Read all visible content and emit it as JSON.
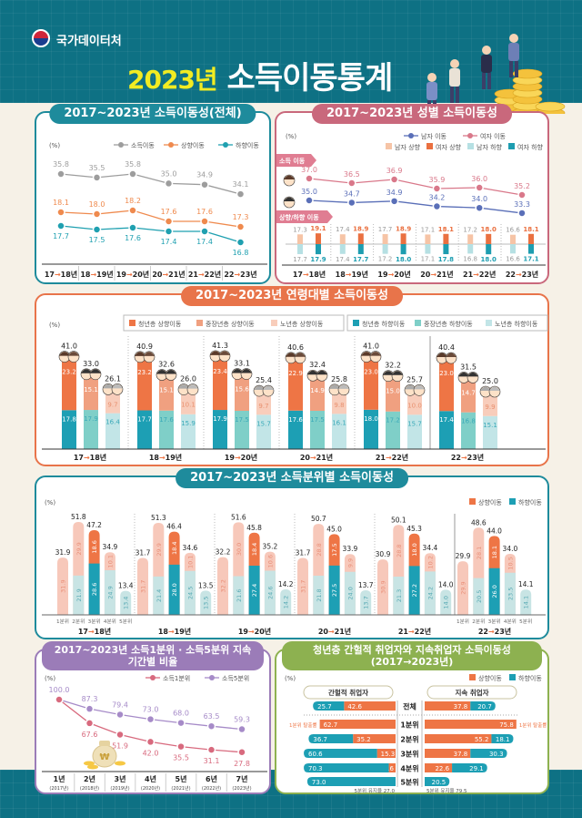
{
  "header": {
    "org": "국가데이터처",
    "title_year": "2023년",
    "title_main": "소득이동통계",
    "logo_icon": "taegeuk-emblem-icon"
  },
  "colors": {
    "teal": "#1e8b9c",
    "pink": "#c9687c",
    "orange": "#e8744a",
    "purple": "#9b7cb8",
    "green": "#8db150",
    "header": "#0e7184"
  },
  "chart_data": [
    {
      "id": "overall",
      "type": "line",
      "title": "2017~2023년 소득이동성(전체)",
      "unit": "(%)",
      "categories": [
        "17→18년",
        "18→19년",
        "19→20년",
        "20→21년",
        "21→22년",
        "22→23년"
      ],
      "series": [
        {
          "name": "소득이동",
          "color": "#9d9d9d",
          "values": [
            35.8,
            35.5,
            35.8,
            35.0,
            34.9,
            34.1
          ]
        },
        {
          "name": "상향이동",
          "color": "#ef8a4e",
          "values": [
            18.1,
            18.0,
            18.2,
            17.6,
            17.6,
            17.3
          ]
        },
        {
          "name": "하향이동",
          "color": "#1fa0b0",
          "values": [
            17.7,
            17.5,
            17.6,
            17.4,
            17.4,
            16.8
          ]
        }
      ]
    },
    {
      "id": "gender",
      "type": "line",
      "title": "2017~2023년 성별  소득이동성",
      "unit": "(%)",
      "section_labels": [
        "소득 이동",
        "상향/하향 이동"
      ],
      "categories": [
        "17→18년",
        "18→19년",
        "19→20년",
        "20→21년",
        "21→22년",
        "22→23년"
      ],
      "series": [
        {
          "name": "남자 이동",
          "color": "#5a6fb8",
          "values": [
            35.0,
            34.7,
            34.9,
            34.2,
            34.0,
            33.3
          ]
        },
        {
          "name": "여자 이동",
          "color": "#d9788a",
          "values": [
            37.0,
            36.5,
            36.9,
            35.9,
            36.0,
            35.2
          ]
        },
        {
          "name": "남자 상향",
          "color": "#f6c4a6",
          "values": [
            17.3,
            17.4,
            17.7,
            17.1,
            17.2,
            16.6
          ]
        },
        {
          "name": "여자 상향",
          "color": "#ea7040",
          "values": [
            19.1,
            18.9,
            18.9,
            18.1,
            18.0,
            18.1
          ]
        },
        {
          "name": "남자 하향",
          "color": "#b6e0e3",
          "values": [
            17.7,
            17.4,
            17.2,
            17.1,
            16.8,
            16.6
          ]
        },
        {
          "name": "여자 하향",
          "color": "#1d9db0",
          "values": [
            17.9,
            17.7,
            18.0,
            17.8,
            18.0,
            17.1
          ]
        }
      ]
    },
    {
      "id": "age",
      "type": "bar",
      "stacked": true,
      "title": "2017~2023년 연령대별 소득이동성",
      "unit": "(%)",
      "categories": [
        "17→18년",
        "18→19년",
        "19→20년",
        "20→21년",
        "21→22년",
        "22→23년"
      ],
      "totals": {
        "청년층": [
          41.0,
          40.9,
          41.3,
          40.6,
          41.0,
          40.4
        ],
        "중장년층": [
          33.0,
          32.6,
          33.1,
          32.4,
          32.2,
          31.5
        ],
        "노년층": [
          26.1,
          26.0,
          25.4,
          25.8,
          25.7,
          25.0
        ]
      },
      "series": [
        {
          "name": "청년층 상향이동",
          "color": "#ee7545",
          "values": [
            23.2,
            23.2,
            23.4,
            22.9,
            23.0,
            23.0
          ]
        },
        {
          "name": "중장년층 상향이동",
          "color": "#f0a080",
          "values": [
            15.1,
            15.1,
            15.6,
            14.9,
            15.0,
            14.7
          ]
        },
        {
          "name": "노년층 상향이동",
          "color": "#f8cdbb",
          "values": [
            9.7,
            10.1,
            9.7,
            9.8,
            10.0,
            9.9
          ]
        },
        {
          "name": "청년층 하향이동",
          "color": "#1d9fb4",
          "values": [
            17.8,
            17.7,
            17.9,
            17.6,
            18.0,
            17.4
          ]
        },
        {
          "name": "중장년층 하향이동",
          "color": "#7fcfc8",
          "values": [
            17.9,
            17.6,
            17.5,
            17.5,
            17.2,
            16.8
          ]
        },
        {
          "name": "노년층 하향이동",
          "color": "#c2e5e7",
          "values": [
            16.4,
            15.9,
            15.7,
            16.1,
            15.7,
            15.1
          ]
        }
      ]
    },
    {
      "id": "quintile",
      "type": "bar",
      "stacked": true,
      "title": "2017~2023년 소득분위별 소득이동성",
      "unit": "(%)",
      "legend": [
        {
          "name": "상향이동",
          "color": "#ee7545"
        },
        {
          "name": "하향이동",
          "color": "#1d9fb4"
        }
      ],
      "categories": [
        "17→18년",
        "18→19년",
        "19→20년",
        "20→21년",
        "21→22년",
        "22→23년"
      ],
      "quintiles": [
        "1분위",
        "2분위",
        "3분위",
        "4분위",
        "5분위"
      ],
      "groups": [
        {
          "totals": [
            31.9,
            51.8,
            47.2,
            34.9,
            13.4
          ],
          "up": [
            31.9,
            29.9,
            18.6,
            10.1,
            null
          ],
          "down": [
            null,
            21.9,
            28.6,
            24.9,
            13.4
          ]
        },
        {
          "totals": [
            31.7,
            51.3,
            46.4,
            34.6,
            13.5
          ],
          "up": [
            31.7,
            29.9,
            18.4,
            10.1,
            null
          ],
          "down": [
            null,
            21.4,
            28.0,
            24.5,
            13.5
          ]
        },
        {
          "totals": [
            32.2,
            51.6,
            45.8,
            35.2,
            14.2
          ],
          "up": [
            32.2,
            30.0,
            18.4,
            10.6,
            null
          ],
          "down": [
            null,
            21.6,
            27.4,
            24.6,
            14.2
          ]
        },
        {
          "totals": [
            31.7,
            50.7,
            45.0,
            33.9,
            13.7
          ],
          "up": [
            31.7,
            28.8,
            17.5,
            9.9,
            null
          ],
          "down": [
            null,
            21.8,
            27.5,
            24.0,
            13.7
          ]
        },
        {
          "totals": [
            30.9,
            50.1,
            45.3,
            34.4,
            14.0
          ],
          "up": [
            30.9,
            28.8,
            18.0,
            10.2,
            null
          ],
          "down": [
            null,
            21.3,
            27.2,
            24.2,
            14.0
          ]
        },
        {
          "totals": [
            29.9,
            48.6,
            44.0,
            34.0,
            14.1
          ],
          "up": [
            29.9,
            28.1,
            18.1,
            10.5,
            null
          ],
          "down": [
            null,
            20.5,
            26.0,
            23.5,
            14.1
          ]
        }
      ]
    },
    {
      "id": "persistence",
      "type": "line",
      "title": "2017~2023년 소득1분위 · 소득5분위 지속기간별 비율",
      "unit": "(%)",
      "categories": [
        "1년",
        "2년",
        "3년",
        "4년",
        "5년",
        "6년",
        "7년"
      ],
      "sublabels": [
        "(2017년)",
        "(2018년)",
        "(2019년)",
        "(2020년)",
        "(2021년)",
        "(2022년)",
        "(2023년)"
      ],
      "series": [
        {
          "name": "소득1분위",
          "color": "#d86a7e",
          "values": [
            100.0,
            67.6,
            51.9,
            42.0,
            35.5,
            31.1,
            27.8
          ]
        },
        {
          "name": "소득5분위",
          "color": "#a68bc8",
          "values": [
            100.0,
            87.3,
            79.4,
            73.0,
            68.0,
            63.5,
            59.3
          ]
        }
      ]
    },
    {
      "id": "youth",
      "type": "bar",
      "orientation": "horizontal-diverging",
      "title": "청년층 간헐적 취업자와 지속취업자 소득이동성(2017→2023년)",
      "unit": "(%)",
      "legend": [
        {
          "name": "상향이동",
          "color": "#ee7545"
        },
        {
          "name": "하향이동",
          "color": "#1d9fb4"
        }
      ],
      "rows": [
        "전체",
        "1분위",
        "2분위",
        "3분위",
        "4분위",
        "5분위"
      ],
      "groups": [
        {
          "name": "간헐적 취업자",
          "up": [
            42.6,
            62.7,
            35.2,
            15.3,
            5.6,
            null
          ],
          "down": [
            25.7,
            null,
            36.7,
            60.6,
            70.3,
            73.0
          ],
          "escape_label": "1분위 탈출률",
          "retention_label": "5분위 유지율 27.0"
        },
        {
          "name": "지속 취업자",
          "up": [
            37.8,
            75.8,
            55.2,
            37.8,
            22.6,
            null
          ],
          "down": [
            20.7,
            null,
            18.1,
            30.3,
            29.1,
            20.5
          ],
          "escape_label": "1분위 탈출률",
          "retention_label": "5분위 유지율 79.5"
        }
      ]
    }
  ]
}
